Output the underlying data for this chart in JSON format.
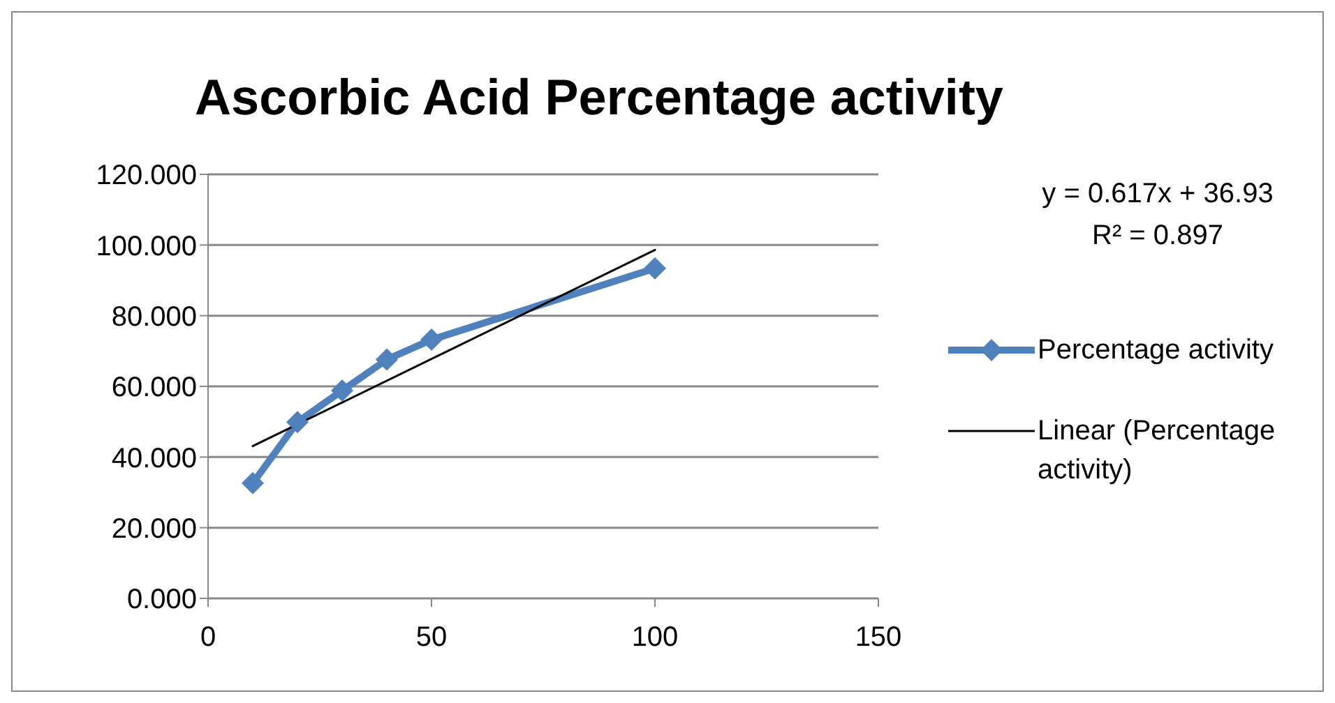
{
  "chart_data": {
    "type": "line",
    "title": "Ascorbic Acid Percentage activity",
    "xlim": [
      0,
      150
    ],
    "xticks": [
      0,
      50,
      100,
      150
    ],
    "ylim": [
      0,
      120
    ],
    "yticks": [
      {
        "value": 0,
        "label": "0.000"
      },
      {
        "value": 20,
        "label": "20.000"
      },
      {
        "value": 40,
        "label": "40.000"
      },
      {
        "value": 60,
        "label": "60.000"
      },
      {
        "value": 80,
        "label": "80.000"
      },
      {
        "value": 100,
        "label": "100.000"
      },
      {
        "value": 120,
        "label": "120.000"
      }
    ],
    "grid": "y",
    "legend": "right",
    "marker": "diamond",
    "line_style": "solid",
    "series": [
      {
        "name": "Percentage activity",
        "color": "#4f81bd",
        "x": [
          10,
          20,
          30,
          40,
          50,
          100
        ],
        "values": [
          32.6,
          49.9,
          58.8,
          67.6,
          73.2,
          93.4
        ]
      },
      {
        "name": "Linear (Percentage activity)",
        "color": "#000000",
        "type": "line",
        "marker": "none",
        "x": [
          10,
          100
        ],
        "values": [
          43.1,
          98.6
        ]
      }
    ],
    "annotations": [
      "y = 0.617x + 36.93",
      "R² = 0.897"
    ]
  }
}
